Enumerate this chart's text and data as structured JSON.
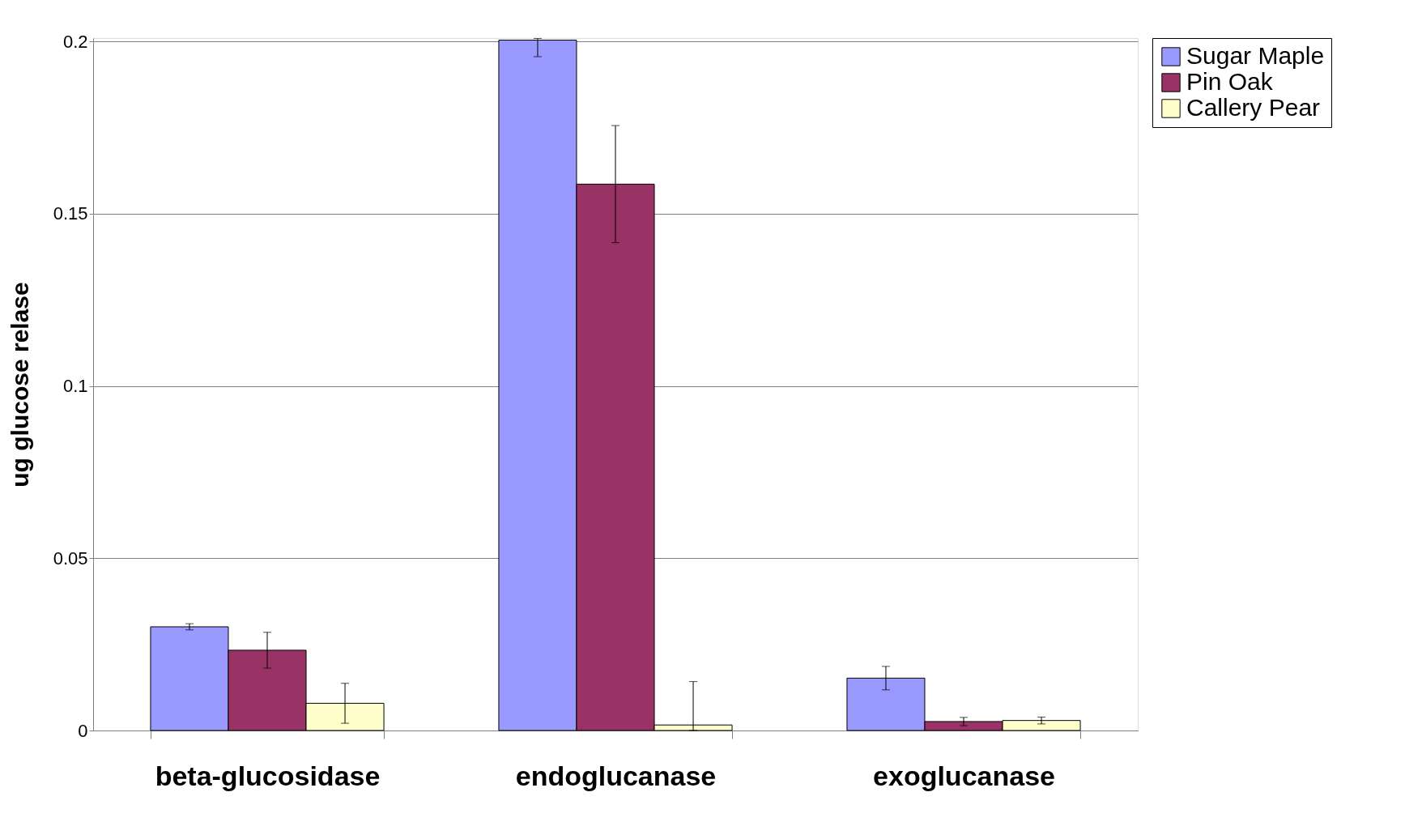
{
  "chart_data": {
    "type": "bar",
    "ylabel": "ug glucose relase",
    "categories": [
      "beta-glucosidase",
      "endoglucanase",
      "exoglucanase"
    ],
    "series": [
      {
        "name": "Sugar Maple",
        "color": "#9999ff",
        "values": [
          0.0301,
          0.2004,
          0.0152
        ],
        "errors": [
          0.0009,
          [
            0.1956,
            0.2009
          ],
          0.0034
        ]
      },
      {
        "name": "Pin Oak",
        "color": "#993366",
        "values": [
          0.0233,
          0.1586,
          0.0026
        ],
        "errors": [
          0.0052,
          0.017,
          0.0012
        ]
      },
      {
        "name": "Callery Pear",
        "color": "#ffffcc",
        "values": [
          0.0079,
          0.0016,
          0.0029
        ],
        "errors": [
          0.0058,
          [
            0,
            0.0142
          ],
          0.001
        ]
      }
    ],
    "ylim": [
      0,
      0.201
    ],
    "yticks": [
      {
        "value": 0,
        "label": "0"
      },
      0.05,
      {
        "value": 0.1,
        "label": "0.1"
      },
      0.15,
      {
        "value": 0.2,
        "label": "0.2"
      }
    ],
    "grid": "y",
    "legend": "right"
  }
}
